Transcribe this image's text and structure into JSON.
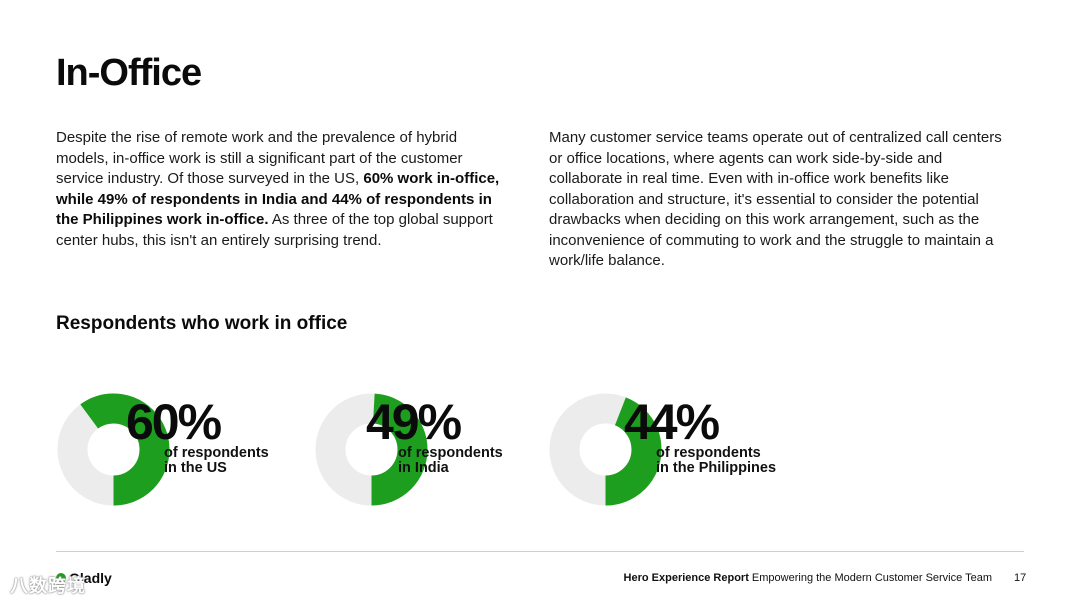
{
  "page": {
    "title": "In-Office"
  },
  "intro_left": {
    "text_1": "Despite the rise of remote work and the prevalence of hybrid models, in-office work is still a significant part of the customer service industry. Of those surveyed in the US, ",
    "bold": "60% work in-office, while 49% of respondents in India and 44% of respondents in the Philippines work in-office.",
    "text_2": " As three of the top global support center hubs, this isn't an entirely surprising trend."
  },
  "intro_right": {
    "text": "Many customer service teams operate out of centralized call centers or office locations, where agents can work side-by-side and collaborate in real time. Even with in-office work benefits like collaboration and structure, it's essential to consider the potential drawbacks when deciding on this work arrangement, such as the inconvenience of commuting to work and the struggle to maintain a work/life balance."
  },
  "stats_heading": "Respondents who work in office",
  "colors": {
    "accent": "#1e9e1e",
    "track": "#ececec"
  },
  "stats": [
    {
      "value": 60,
      "label": "60%",
      "line1": "of respondents",
      "line2": "in the US"
    },
    {
      "value": 49,
      "label": "49%",
      "line1": "of respondents",
      "line2": "in India"
    },
    {
      "value": 44,
      "label": "44%",
      "line1": "of respondents",
      "line2": "in the Philippines"
    }
  ],
  "footer": {
    "brand": "Gladly",
    "report_bold": "Hero Experience Report",
    "report_rest": " Empowering the Modern Customer Service Team",
    "page_number": "17",
    "watermark": "八数跨境"
  }
}
